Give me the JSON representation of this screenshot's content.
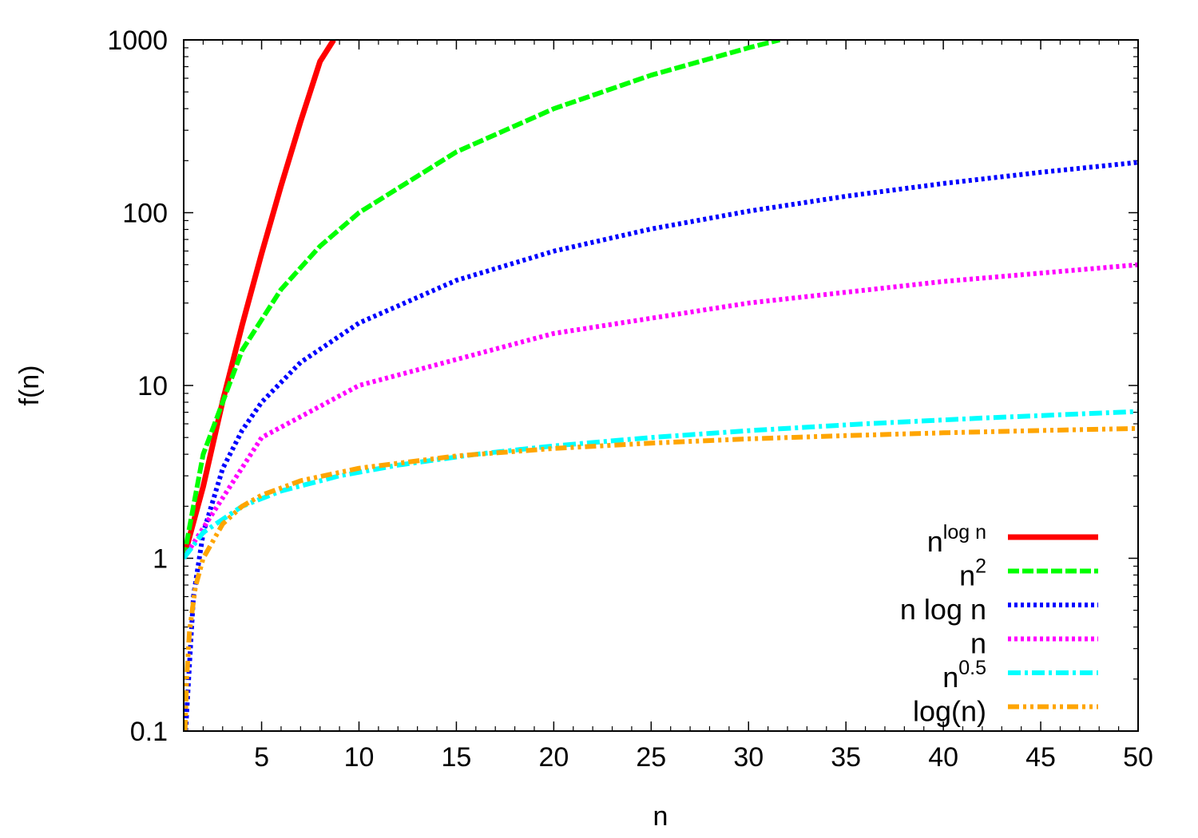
{
  "chart_data": {
    "type": "line",
    "title": "",
    "xlabel": "n",
    "ylabel": "f(n)",
    "xlim": [
      1,
      50
    ],
    "ylim": [
      0.1,
      1000
    ],
    "yscale": "log",
    "grid": false,
    "legend_position": "bottom-right",
    "x_ticks": [
      5,
      10,
      15,
      20,
      25,
      30,
      35,
      40,
      45,
      50
    ],
    "x_tick_labels": [
      "5",
      "10",
      "15",
      "20",
      "25",
      "30",
      "35",
      "40",
      "45",
      "50"
    ],
    "y_ticks": [
      0.1,
      1,
      10,
      100,
      1000
    ],
    "y_tick_labels": [
      "0.1",
      "1",
      "10",
      "100",
      "1000"
    ],
    "series": [
      {
        "name": "n^log n",
        "legend_base": "n",
        "legend_sup": "log n",
        "color": "#ff0000",
        "style": "solid",
        "x": [
          1,
          2,
          3,
          4,
          5,
          6,
          7,
          8,
          8.7
        ],
        "y": [
          1,
          2.6,
          8.1,
          22.4,
          58.1,
          143,
          336,
          750,
          1000
        ]
      },
      {
        "name": "n^2",
        "legend_base": "n",
        "legend_sup": "2",
        "color": "#00ff00",
        "style": "dashed",
        "x": [
          1,
          2,
          4,
          6,
          8,
          10,
          15,
          20,
          25,
          30,
          31.6
        ],
        "y": [
          1,
          4,
          16,
          36,
          64,
          100,
          225,
          400,
          625,
          900,
          1000
        ]
      },
      {
        "name": "n log n",
        "legend_base": "n log n",
        "legend_sup": "",
        "color": "#0000ff",
        "style": "dotted",
        "x": [
          1.1,
          1.5,
          2,
          3,
          4,
          5,
          7,
          10,
          15,
          20,
          25,
          30,
          35,
          40,
          45,
          50
        ],
        "y": [
          0.1,
          0.6,
          1.4,
          3.3,
          5.5,
          8,
          13.6,
          23,
          40.6,
          59.9,
          80.5,
          102,
          124.5,
          147.6,
          171.3,
          195.6
        ]
      },
      {
        "name": "n",
        "legend_base": "n",
        "legend_sup": "",
        "color": "#ff00ff",
        "style": "dotted",
        "x": [
          1,
          5,
          10,
          20,
          30,
          40,
          50
        ],
        "y": [
          1,
          5,
          10,
          20,
          30,
          40,
          50
        ]
      },
      {
        "name": "n^0.5",
        "legend_base": "n",
        "legend_sup": "0.5",
        "color": "#00ffff",
        "style": "dashdot",
        "x": [
          1,
          2,
          4,
          6,
          9,
          12,
          16,
          20,
          25,
          30,
          36,
          42,
          50
        ],
        "y": [
          1,
          1.41,
          2,
          2.45,
          3,
          3.46,
          4,
          4.47,
          5,
          5.48,
          6,
          6.48,
          7.07
        ]
      },
      {
        "name": "log(n)",
        "legend_base": "log(n)",
        "legend_sup": "",
        "color": "#ffa500",
        "style": "dashdotdot",
        "x": [
          1.07,
          1.15,
          1.3,
          1.6,
          2,
          3,
          4,
          5,
          7,
          10,
          15,
          20,
          25,
          30,
          35,
          40,
          45,
          50
        ],
        "y": [
          0.1,
          0.2,
          0.38,
          0.68,
          1,
          1.58,
          2,
          2.32,
          2.81,
          3.32,
          3.91,
          4.32,
          4.64,
          4.91,
          5.13,
          5.32,
          5.49,
          5.64
        ]
      }
    ]
  }
}
